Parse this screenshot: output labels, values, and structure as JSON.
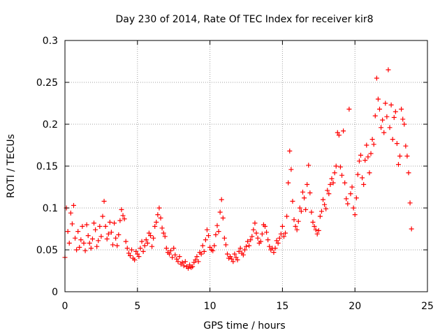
{
  "chart_data": {
    "type": "scatter",
    "title": "Day 230 of 2014, Rate Of TEC Index for receiver kir8",
    "xlabel": "GPS time / hours",
    "ylabel": "ROTI / TECUs",
    "xlim": [
      0,
      25
    ],
    "ylim": [
      0,
      0.3
    ],
    "xticks": [
      "0",
      "5",
      "10",
      "15",
      "20",
      "25"
    ],
    "yticks": [
      "0",
      "0.05",
      "0.1",
      "0.15",
      "0.2",
      "0.25",
      "0.3"
    ],
    "grid": true,
    "marker": "+",
    "color": "#ff0000",
    "series": [
      {
        "points": [
          [
            0.0,
            0.041
          ],
          [
            0.1,
            0.1
          ],
          [
            0.2,
            0.072
          ],
          [
            0.3,
            0.058
          ],
          [
            0.4,
            0.094
          ],
          [
            0.5,
            0.081
          ],
          [
            0.6,
            0.103
          ],
          [
            0.7,
            0.064
          ],
          [
            0.8,
            0.05
          ],
          [
            0.9,
            0.072
          ],
          [
            1.0,
            0.053
          ],
          [
            1.1,
            0.062
          ],
          [
            1.2,
            0.078
          ],
          [
            1.3,
            0.058
          ],
          [
            1.4,
            0.049
          ],
          [
            1.5,
            0.08
          ],
          [
            1.6,
            0.067
          ],
          [
            1.7,
            0.058
          ],
          [
            1.8,
            0.052
          ],
          [
            1.9,
            0.063
          ],
          [
            2.0,
            0.082
          ],
          [
            2.1,
            0.074
          ],
          [
            2.2,
            0.054
          ],
          [
            2.3,
            0.061
          ],
          [
            2.4,
            0.078
          ],
          [
            2.5,
            0.066
          ],
          [
            2.6,
            0.09
          ],
          [
            2.7,
            0.108
          ],
          [
            2.8,
            0.078
          ],
          [
            2.9,
            0.063
          ],
          [
            3.0,
            0.069
          ],
          [
            3.1,
            0.083
          ],
          [
            3.2,
            0.071
          ],
          [
            3.3,
            0.056
          ],
          [
            3.4,
            0.082
          ],
          [
            3.5,
            0.064
          ],
          [
            3.6,
            0.055
          ],
          [
            3.7,
            0.068
          ],
          [
            3.8,
            0.085
          ],
          [
            3.9,
            0.098
          ],
          [
            4.0,
            0.091
          ],
          [
            4.1,
            0.087
          ],
          [
            4.2,
            0.06
          ],
          [
            4.3,
            0.052
          ],
          [
            4.4,
            0.046
          ],
          [
            4.5,
            0.043
          ],
          [
            4.6,
            0.05
          ],
          [
            4.7,
            0.04
          ],
          [
            4.8,
            0.038
          ],
          [
            4.9,
            0.048
          ],
          [
            5.0,
            0.045
          ],
          [
            5.1,
            0.042
          ],
          [
            5.2,
            0.052
          ],
          [
            5.3,
            0.06
          ],
          [
            5.4,
            0.048
          ],
          [
            5.5,
            0.055
          ],
          [
            5.6,
            0.062
          ],
          [
            5.7,
            0.058
          ],
          [
            5.8,
            0.07
          ],
          [
            5.9,
            0.067
          ],
          [
            6.0,
            0.054
          ],
          [
            6.1,
            0.064
          ],
          [
            6.2,
            0.078
          ],
          [
            6.3,
            0.083
          ],
          [
            6.4,
            0.092
          ],
          [
            6.5,
            0.1
          ],
          [
            6.6,
            0.088
          ],
          [
            6.7,
            0.076
          ],
          [
            6.8,
            0.07
          ],
          [
            6.9,
            0.066
          ],
          [
            7.0,
            0.052
          ],
          [
            7.1,
            0.047
          ],
          [
            7.2,
            0.045
          ],
          [
            7.3,
            0.049
          ],
          [
            7.4,
            0.041
          ],
          [
            7.5,
            0.052
          ],
          [
            7.6,
            0.044
          ],
          [
            7.7,
            0.039
          ],
          [
            7.8,
            0.036
          ],
          [
            7.9,
            0.042
          ],
          [
            8.0,
            0.033
          ],
          [
            8.1,
            0.035
          ],
          [
            8.2,
            0.031
          ],
          [
            8.3,
            0.036
          ],
          [
            8.4,
            0.03
          ],
          [
            8.5,
            0.028
          ],
          [
            8.6,
            0.032
          ],
          [
            8.7,
            0.029
          ],
          [
            8.8,
            0.03
          ],
          [
            8.9,
            0.035
          ],
          [
            9.0,
            0.038
          ],
          [
            9.1,
            0.042
          ],
          [
            9.2,
            0.036
          ],
          [
            9.3,
            0.047
          ],
          [
            9.4,
            0.045
          ],
          [
            9.5,
            0.055
          ],
          [
            9.6,
            0.048
          ],
          [
            9.7,
            0.062
          ],
          [
            9.8,
            0.074
          ],
          [
            9.9,
            0.067
          ],
          [
            10.0,
            0.053
          ],
          [
            10.1,
            0.05
          ],
          [
            10.2,
            0.049
          ],
          [
            10.3,
            0.055
          ],
          [
            10.4,
            0.068
          ],
          [
            10.5,
            0.079
          ],
          [
            10.6,
            0.072
          ],
          [
            10.7,
            0.095
          ],
          [
            10.8,
            0.11
          ],
          [
            10.9,
            0.088
          ],
          [
            11.0,
            0.064
          ],
          [
            11.1,
            0.056
          ],
          [
            11.2,
            0.045
          ],
          [
            11.3,
            0.04
          ],
          [
            11.4,
            0.042
          ],
          [
            11.5,
            0.039
          ],
          [
            11.6,
            0.036
          ],
          [
            11.7,
            0.045
          ],
          [
            11.8,
            0.041
          ],
          [
            11.9,
            0.038
          ],
          [
            12.0,
            0.048
          ],
          [
            12.1,
            0.052
          ],
          [
            12.2,
            0.046
          ],
          [
            12.3,
            0.044
          ],
          [
            12.4,
            0.05
          ],
          [
            12.5,
            0.054
          ],
          [
            12.6,
            0.06
          ],
          [
            12.7,
            0.055
          ],
          [
            12.8,
            0.062
          ],
          [
            12.9,
            0.066
          ],
          [
            13.0,
            0.074
          ],
          [
            13.1,
            0.082
          ],
          [
            13.2,
            0.07
          ],
          [
            13.3,
            0.064
          ],
          [
            13.4,
            0.058
          ],
          [
            13.5,
            0.06
          ],
          [
            13.6,
            0.069
          ],
          [
            13.7,
            0.08
          ],
          [
            13.8,
            0.078
          ],
          [
            13.9,
            0.071
          ],
          [
            14.0,
            0.062
          ],
          [
            14.1,
            0.054
          ],
          [
            14.2,
            0.05
          ],
          [
            14.3,
            0.052
          ],
          [
            14.4,
            0.047
          ],
          [
            14.5,
            0.052
          ],
          [
            14.6,
            0.061
          ],
          [
            14.7,
            0.058
          ],
          [
            14.8,
            0.064
          ],
          [
            14.9,
            0.069
          ],
          [
            15.0,
            0.078
          ],
          [
            15.1,
            0.066
          ],
          [
            15.2,
            0.07
          ],
          [
            15.3,
            0.09
          ],
          [
            15.4,
            0.13
          ],
          [
            15.5,
            0.168
          ],
          [
            15.6,
            0.146
          ],
          [
            15.7,
            0.108
          ],
          [
            15.8,
            0.086
          ],
          [
            15.9,
            0.078
          ],
          [
            16.0,
            0.074
          ],
          [
            16.1,
            0.084
          ],
          [
            16.2,
            0.1
          ],
          [
            16.3,
            0.096
          ],
          [
            16.4,
            0.119
          ],
          [
            16.5,
            0.112
          ],
          [
            16.6,
            0.098
          ],
          [
            16.7,
            0.128
          ],
          [
            16.8,
            0.151
          ],
          [
            16.9,
            0.118
          ],
          [
            17.0,
            0.095
          ],
          [
            17.1,
            0.083
          ],
          [
            17.2,
            0.078
          ],
          [
            17.3,
            0.074
          ],
          [
            17.4,
            0.069
          ],
          [
            17.5,
            0.073
          ],
          [
            17.6,
            0.09
          ],
          [
            17.7,
            0.096
          ],
          [
            17.8,
            0.11
          ],
          [
            17.9,
            0.104
          ],
          [
            18.0,
            0.099
          ],
          [
            18.1,
            0.121
          ],
          [
            18.2,
            0.117
          ],
          [
            18.3,
            0.128
          ],
          [
            18.4,
            0.135
          ],
          [
            18.5,
            0.13
          ],
          [
            18.6,
            0.142
          ],
          [
            18.7,
            0.15
          ],
          [
            18.8,
            0.19
          ],
          [
            18.9,
            0.187
          ],
          [
            19.0,
            0.149
          ],
          [
            19.1,
            0.139
          ],
          [
            19.2,
            0.192
          ],
          [
            19.3,
            0.13
          ],
          [
            19.4,
            0.111
          ],
          [
            19.5,
            0.105
          ],
          [
            19.6,
            0.218
          ],
          [
            19.7,
            0.117
          ],
          [
            19.8,
            0.125
          ],
          [
            19.9,
            0.1
          ],
          [
            20.0,
            0.092
          ],
          [
            20.1,
            0.112
          ],
          [
            20.2,
            0.14
          ],
          [
            20.3,
            0.156
          ],
          [
            20.4,
            0.163
          ],
          [
            20.5,
            0.136
          ],
          [
            20.6,
            0.128
          ],
          [
            20.7,
            0.157
          ],
          [
            20.8,
            0.175
          ],
          [
            20.9,
            0.161
          ],
          [
            21.0,
            0.142
          ],
          [
            21.1,
            0.165
          ],
          [
            21.2,
            0.182
          ],
          [
            21.3,
            0.176
          ],
          [
            21.4,
            0.21
          ],
          [
            21.5,
            0.255
          ],
          [
            21.6,
            0.23
          ],
          [
            21.7,
            0.218
          ],
          [
            21.8,
            0.196
          ],
          [
            21.9,
            0.205
          ],
          [
            22.0,
            0.19
          ],
          [
            22.1,
            0.225
          ],
          [
            22.2,
            0.209
          ],
          [
            22.3,
            0.265
          ],
          [
            22.4,
            0.196
          ],
          [
            22.5,
            0.223
          ],
          [
            22.6,
            0.182
          ],
          [
            22.7,
            0.208
          ],
          [
            22.8,
            0.215
          ],
          [
            22.9,
            0.177
          ],
          [
            23.0,
            0.152
          ],
          [
            23.1,
            0.162
          ],
          [
            23.2,
            0.218
          ],
          [
            23.3,
            0.206
          ],
          [
            23.4,
            0.2
          ],
          [
            23.5,
            0.174
          ],
          [
            23.6,
            0.162
          ],
          [
            23.7,
            0.142
          ],
          [
            23.8,
            0.106
          ],
          [
            23.9,
            0.075
          ]
        ]
      }
    ]
  }
}
